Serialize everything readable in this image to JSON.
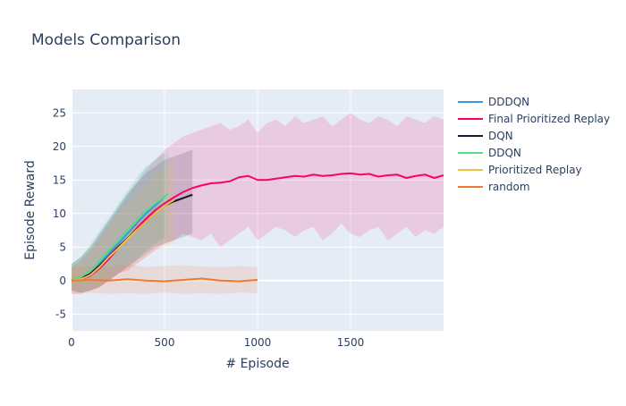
{
  "chart_data": {
    "type": "line",
    "title": "Models Comparison",
    "xlabel": "# Episode",
    "ylabel": "Episode Reward",
    "xlim": [
      0,
      2000
    ],
    "ylim": [
      -7.5,
      28.5
    ],
    "x_ticks": [
      0,
      500,
      1000,
      1500
    ],
    "y_ticks": [
      -5,
      0,
      5,
      10,
      15,
      20,
      25
    ],
    "grid": true,
    "legend_position": "right",
    "plot_background": "#e5ecf6",
    "series": [
      {
        "name": "DDDQN",
        "color": "#3b97e0",
        "x": [
          0,
          50,
          100,
          150,
          200,
          250,
          300,
          350,
          400,
          450,
          500
        ],
        "y": [
          0.1,
          0.3,
          1.0,
          2.5,
          4.0,
          5.5,
          7.0,
          8.5,
          10.0,
          11.2,
          12.5
        ],
        "band_low": [
          -1.5,
          -1.8,
          -1.5,
          -1.0,
          0.0,
          1.0,
          2.0,
          3.0,
          4.5,
          5.5,
          6.5
        ],
        "band_high": [
          2.5,
          3.5,
          5.0,
          7.0,
          9.0,
          11.0,
          13.0,
          15.0,
          17.0,
          18.0,
          19.0
        ]
      },
      {
        "name": "Final Prioritized Replay",
        "color": "#ff0066",
        "x": [
          0,
          50,
          100,
          150,
          200,
          250,
          300,
          350,
          400,
          450,
          500,
          550,
          600,
          650,
          700,
          750,
          800,
          850,
          900,
          950,
          1000,
          1050,
          1100,
          1150,
          1200,
          1250,
          1300,
          1350,
          1400,
          1450,
          1500,
          1550,
          1600,
          1650,
          1700,
          1750,
          1800,
          1850,
          1900,
          1950,
          2000
        ],
        "y": [
          0.0,
          0.2,
          0.7,
          1.8,
          3.2,
          4.8,
          6.2,
          7.8,
          9.2,
          10.5,
          11.5,
          12.4,
          13.2,
          13.8,
          14.2,
          14.5,
          14.6,
          14.8,
          15.4,
          15.6,
          15.0,
          15.0,
          15.2,
          15.4,
          15.6,
          15.5,
          15.8,
          15.6,
          15.7,
          15.9,
          16.0,
          15.8,
          15.9,
          15.5,
          15.7,
          15.8,
          15.3,
          15.6,
          15.8,
          15.3,
          15.7
        ],
        "band_low": [
          -2.0,
          -2.0,
          -1.5,
          -1.0,
          0.0,
          1.0,
          1.5,
          2.5,
          3.5,
          4.5,
          5.5,
          6.0,
          7.0,
          6.5,
          6.0,
          7.0,
          5.0,
          6.0,
          7.0,
          8.0,
          6.0,
          7.0,
          8.0,
          7.5,
          6.5,
          7.5,
          8.0,
          6.0,
          7.0,
          8.5,
          7.0,
          6.5,
          7.5,
          8.0,
          6.0,
          7.0,
          8.0,
          6.5,
          7.5,
          7.0,
          8.0
        ],
        "band_high": [
          2.0,
          3.0,
          4.5,
          6.5,
          8.5,
          10.5,
          12.5,
          14.5,
          16.5,
          18.0,
          19.5,
          20.5,
          21.5,
          22.0,
          22.5,
          23.0,
          23.5,
          22.5,
          23.0,
          24.0,
          22.0,
          23.5,
          24.0,
          23.0,
          24.5,
          23.5,
          24.0,
          24.5,
          23.0,
          24.0,
          25.0,
          24.0,
          23.5,
          24.5,
          24.0,
          23.0,
          24.5,
          24.0,
          23.5,
          24.5,
          24.0
        ]
      },
      {
        "name": "DQN",
        "color": "#1a1a2e",
        "x": [
          0,
          50,
          100,
          150,
          200,
          250,
          300,
          350,
          400,
          450,
          500,
          550,
          600,
          650
        ],
        "y": [
          0.1,
          0.3,
          1.0,
          2.2,
          3.6,
          5.0,
          6.3,
          7.5,
          8.8,
          10.0,
          11.2,
          11.8,
          12.3,
          12.8
        ],
        "band_low": [
          -1.5,
          -1.8,
          -1.5,
          -1.0,
          0.0,
          1.0,
          2.0,
          3.0,
          4.0,
          5.0,
          5.5,
          6.0,
          6.5,
          7.0
        ],
        "band_high": [
          2.5,
          3.5,
          5.0,
          7.0,
          9.0,
          11.0,
          13.0,
          14.5,
          16.0,
          17.0,
          18.0,
          18.5,
          19.0,
          19.5
        ]
      },
      {
        "name": "DDQN",
        "color": "#57d98a",
        "x": [
          0,
          50,
          100,
          150,
          200,
          250,
          300,
          350,
          400,
          450,
          500,
          520
        ],
        "y": [
          0.1,
          0.5,
          1.5,
          3.0,
          4.5,
          6.0,
          7.5,
          9.0,
          10.5,
          11.5,
          12.5,
          13.0
        ],
        "band_low": [
          -1.5,
          -1.5,
          -1.0,
          -0.5,
          0.5,
          1.5,
          2.5,
          3.5,
          4.5,
          5.5,
          6.0,
          6.5
        ],
        "band_high": [
          2.5,
          3.5,
          5.5,
          7.5,
          9.5,
          11.5,
          13.5,
          15.5,
          17.0,
          18.0,
          19.0,
          19.5
        ]
      },
      {
        "name": "Prioritized Replay",
        "color": "#e8c547",
        "x": [
          0,
          50,
          100,
          150,
          200,
          250,
          300,
          350,
          400,
          450,
          500,
          550
        ],
        "y": [
          0.0,
          0.2,
          0.8,
          2.0,
          3.5,
          4.8,
          6.2,
          7.5,
          8.8,
          10.0,
          11.2,
          12.0
        ],
        "band_low": [
          -1.5,
          -1.8,
          -1.5,
          -1.0,
          0.0,
          1.0,
          1.5,
          2.5,
          3.5,
          4.5,
          5.0,
          5.5
        ],
        "band_high": [
          2.0,
          3.0,
          4.5,
          6.5,
          8.5,
          10.0,
          11.5,
          13.0,
          14.5,
          16.0,
          17.0,
          18.0
        ]
      },
      {
        "name": "random",
        "color": "#f07830",
        "x": [
          0,
          100,
          200,
          300,
          400,
          500,
          600,
          700,
          800,
          900,
          1000
        ],
        "y": [
          0.0,
          0.1,
          0.0,
          0.2,
          0.0,
          -0.1,
          0.1,
          0.3,
          0.0,
          -0.1,
          0.1
        ],
        "band_low": [
          -2.0,
          -1.8,
          -2.0,
          -1.9,
          -2.0,
          -1.8,
          -2.0,
          -1.9,
          -2.0,
          -1.8,
          -1.9
        ],
        "band_high": [
          2.0,
          2.2,
          2.0,
          2.5,
          2.0,
          2.2,
          2.3,
          2.1,
          2.0,
          2.2,
          2.0
        ]
      }
    ]
  }
}
